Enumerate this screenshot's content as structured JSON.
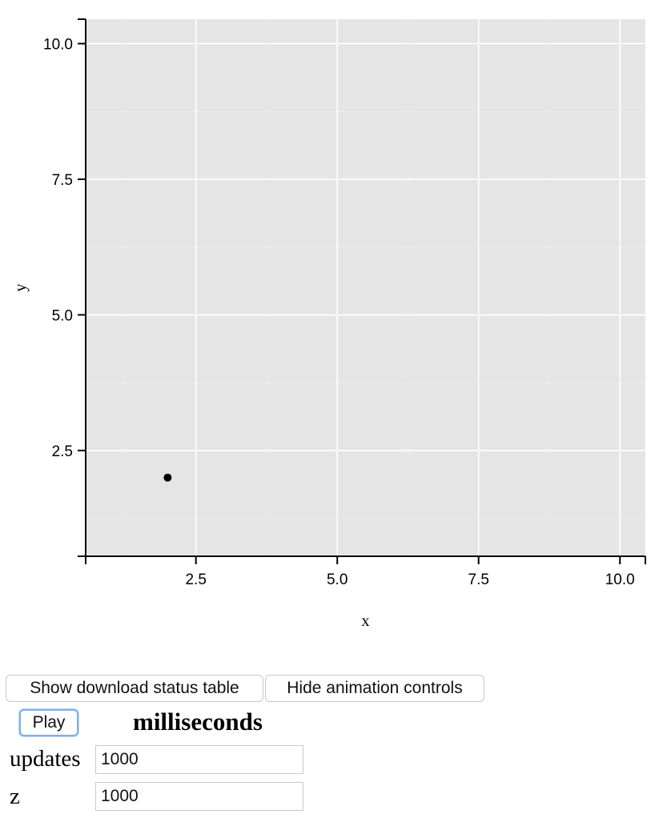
{
  "chart_data": {
    "type": "scatter",
    "xlabel": "x",
    "ylabel": "y",
    "xlim": [
      0.55,
      10.45
    ],
    "ylim": [
      0.55,
      10.45
    ],
    "x_ticks": [
      "2.5",
      "5.0",
      "7.5",
      "10.0"
    ],
    "y_ticks": [
      "2.5",
      "5.0",
      "7.5",
      "10.0"
    ],
    "grid": true,
    "background": "#e5e5e5",
    "point_color": "#000000",
    "points": [
      {
        "x": 2,
        "y": 2
      }
    ]
  },
  "controls": {
    "status_table_label": "Show download status table",
    "animation_controls_label": "Hide animation controls",
    "play_label": "Play",
    "milliseconds_heading": "milliseconds",
    "updates_label": "updates",
    "updates_value": "1000",
    "z_label": "z",
    "z_value": "1000"
  }
}
